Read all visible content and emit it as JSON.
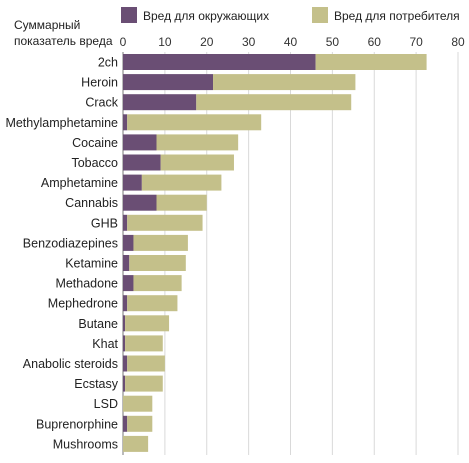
{
  "chart_data": {
    "type": "bar",
    "orientation": "horizontal",
    "stacked": true,
    "y_title": [
      "Суммарный",
      "показатель вреда"
    ],
    "xlim": [
      0,
      80
    ],
    "x_ticks": [
      0,
      10,
      20,
      30,
      40,
      50,
      60,
      70,
      80
    ],
    "grid": true,
    "legend_position": "top",
    "categories": [
      "2ch",
      "Heroin",
      "Crack",
      "Methylamphetamine",
      "Cocaine",
      "Tobacco",
      "Amphetamine",
      "Cannabis",
      "GHB",
      "Benzodiazepines",
      "Ketamine",
      "Methadone",
      "Mephedrone",
      "Butane",
      "Khat",
      "Anabolic steroids",
      "Ecstasy",
      "LSD",
      "Buprenorphine",
      "Mushrooms"
    ],
    "series": [
      {
        "name": "Вред для окружающих",
        "color": "#6a4e74",
        "values": [
          46,
          21.5,
          17.5,
          1,
          8,
          9,
          4.5,
          8,
          1,
          2.5,
          1.5,
          2.5,
          1,
          0.5,
          0.5,
          1,
          0.5,
          0,
          1,
          0
        ]
      },
      {
        "name": "Вред для потребителя",
        "color": "#c4c08a",
        "values": [
          26.5,
          34,
          37,
          32,
          19.5,
          17.5,
          19,
          12,
          18,
          13,
          13.5,
          11.5,
          12,
          10.5,
          9,
          9,
          9,
          7,
          6,
          6
        ]
      }
    ]
  }
}
